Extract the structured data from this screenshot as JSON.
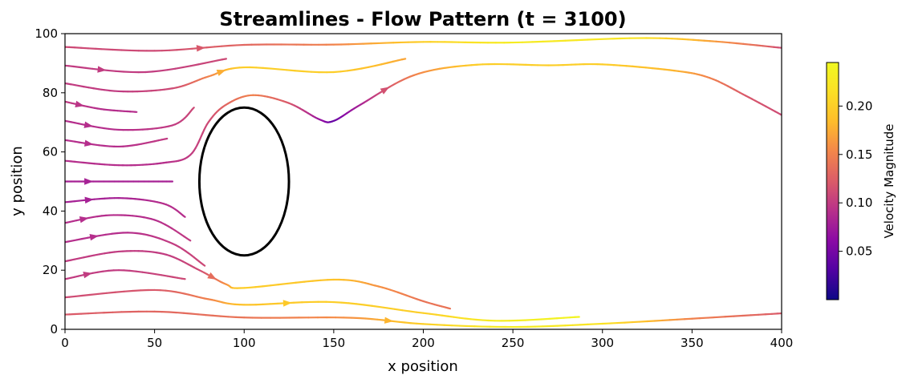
{
  "chart_data": {
    "type": "streamplot",
    "title": "Streamlines - Flow Pattern (t = 3100)",
    "xlabel": "x position",
    "ylabel": "y position",
    "xlim": [
      0,
      400
    ],
    "ylim": [
      0,
      100
    ],
    "xticks": [
      "0",
      "50",
      "100",
      "150",
      "200",
      "250",
      "300",
      "350",
      "400"
    ],
    "yticks": [
      "0",
      "20",
      "40",
      "60",
      "80",
      "100"
    ],
    "obstacle": {
      "shape": "ellipse",
      "cx": 100,
      "cy": 50,
      "rx": 25,
      "ry": 25,
      "color": "#000000"
    },
    "colorbar": {
      "label": "Velocity Magnitude",
      "colormap": "plasma",
      "range": [
        0.0,
        0.245
      ],
      "ticks": [
        "0.05",
        "0.10",
        "0.15",
        "0.20"
      ],
      "tick_values": [
        0.05,
        0.1,
        0.15,
        0.2
      ]
    },
    "streamlines": [
      {
        "points": [
          [
            0,
            95.5
          ],
          [
            50,
            94.2
          ],
          [
            100,
            96.2
          ],
          [
            150,
            96.3
          ],
          [
            200,
            97.2
          ],
          [
            250,
            97.0
          ],
          [
            320,
            98.5
          ],
          [
            360,
            97.5
          ],
          [
            400,
            95.2
          ]
        ],
        "speeds": [
          0.11,
          0.11,
          0.13,
          0.15,
          0.2,
          0.23,
          0.22,
          0.17,
          0.11
        ],
        "arrow_at": 1
      },
      {
        "points": [
          [
            0,
            89.2
          ],
          [
            45,
            87.0
          ],
          [
            90,
            91.5
          ]
        ],
        "speeds": [
          0.1,
          0.1,
          0.11
        ],
        "arrow_at": 0
      },
      {
        "points": [
          [
            0,
            83.2
          ],
          [
            30,
            80.5
          ],
          [
            60,
            81.5
          ],
          [
            80,
            85.5
          ],
          [
            100,
            88.6
          ],
          [
            150,
            87.0
          ],
          [
            190,
            91.5
          ]
        ],
        "speeds": [
          0.1,
          0.1,
          0.11,
          0.15,
          0.2,
          0.2,
          0.17
        ],
        "arrow_at": 3
      },
      {
        "points": [
          [
            0,
            77.0
          ],
          [
            20,
            74.5
          ],
          [
            40,
            73.5
          ]
        ],
        "speeds": [
          0.1,
          0.09,
          0.09
        ],
        "arrow_at": 0
      },
      {
        "points": [
          [
            0,
            70.5
          ],
          [
            30,
            67.5
          ],
          [
            60,
            69.0
          ],
          [
            72,
            75.0
          ]
        ],
        "speeds": [
          0.09,
          0.09,
          0.1,
          0.11
        ],
        "arrow_at": 0
      },
      {
        "points": [
          [
            0,
            64.0
          ],
          [
            30,
            61.8
          ],
          [
            57,
            64.5
          ]
        ],
        "speeds": [
          0.09,
          0.09,
          0.1
        ],
        "arrow_at": 0
      },
      {
        "points": [
          [
            0,
            57.0
          ],
          [
            30,
            55.5
          ],
          [
            55,
            56.3
          ],
          [
            70,
            59.0
          ],
          [
            80,
            70.0
          ],
          [
            90,
            76.0
          ],
          [
            105,
            79.2
          ],
          [
            125,
            76.5
          ],
          [
            142,
            71.0
          ],
          [
            150,
            70.5
          ],
          [
            165,
            76.0
          ],
          [
            195,
            86.0
          ],
          [
            230,
            89.5
          ],
          [
            270,
            89.3
          ],
          [
            300,
            89.6
          ],
          [
            340,
            87.5
          ],
          [
            360,
            85.0
          ],
          [
            380,
            79.0
          ],
          [
            400,
            72.5
          ]
        ],
        "speeds": [
          0.09,
          0.09,
          0.09,
          0.1,
          0.11,
          0.13,
          0.15,
          0.12,
          0.07,
          0.04,
          0.08,
          0.15,
          0.2,
          0.2,
          0.2,
          0.18,
          0.15,
          0.12,
          0.11
        ],
        "arrow_at": 10
      },
      {
        "points": [
          [
            0,
            50.0
          ],
          [
            30,
            50.0
          ],
          [
            60,
            50.0
          ]
        ],
        "speeds": [
          0.08,
          0.08,
          0.08
        ],
        "arrow_at": 0
      },
      {
        "points": [
          [
            0,
            43.0
          ],
          [
            30,
            44.4
          ],
          [
            55,
            42.5
          ],
          [
            67,
            38.0
          ]
        ],
        "speeds": [
          0.08,
          0.08,
          0.09,
          0.09
        ],
        "arrow_at": 0
      },
      {
        "points": [
          [
            0,
            36.0
          ],
          [
            25,
            38.6
          ],
          [
            50,
            37.0
          ],
          [
            70,
            30.0
          ]
        ],
        "speeds": [
          0.09,
          0.09,
          0.09,
          0.1
        ],
        "arrow_at": 0
      },
      {
        "points": [
          [
            0,
            29.5
          ],
          [
            35,
            32.7
          ],
          [
            60,
            29.0
          ],
          [
            78,
            21.5
          ]
        ],
        "speeds": [
          0.09,
          0.09,
          0.1,
          0.11
        ],
        "arrow_at": 0
      },
      {
        "points": [
          [
            0,
            23.0
          ],
          [
            30,
            26.3
          ],
          [
            55,
            25.5
          ],
          [
            75,
            20.0
          ],
          [
            90,
            15.2
          ],
          [
            100,
            14.0
          ],
          [
            150,
            16.8
          ],
          [
            175,
            14.5
          ],
          [
            200,
            9.5
          ],
          [
            215,
            7.0
          ]
        ],
        "speeds": [
          0.1,
          0.1,
          0.1,
          0.11,
          0.16,
          0.2,
          0.19,
          0.16,
          0.14,
          0.14
        ],
        "arrow_at": 3
      },
      {
        "points": [
          [
            0,
            17.0
          ],
          [
            30,
            20.0
          ],
          [
            67,
            17.0
          ]
        ],
        "speeds": [
          0.1,
          0.1,
          0.11
        ],
        "arrow_at": 0
      },
      {
        "points": [
          [
            0,
            10.8
          ],
          [
            50,
            13.3
          ],
          [
            80,
            10.2
          ],
          [
            100,
            8.3
          ],
          [
            150,
            9.2
          ],
          [
            200,
            5.5
          ],
          [
            240,
            2.9
          ],
          [
            287,
            4.2
          ]
        ],
        "speeds": [
          0.11,
          0.12,
          0.15,
          0.19,
          0.2,
          0.2,
          0.23,
          0.24
        ],
        "arrow_at": 3
      },
      {
        "points": [
          [
            0,
            5.0
          ],
          [
            50,
            6.0
          ],
          [
            100,
            4.0
          ],
          [
            160,
            3.9
          ],
          [
            200,
            1.8
          ],
          [
            250,
            0.8
          ],
          [
            300,
            1.9
          ],
          [
            350,
            3.6
          ],
          [
            400,
            5.4
          ]
        ],
        "speeds": [
          0.12,
          0.13,
          0.14,
          0.16,
          0.2,
          0.23,
          0.22,
          0.15,
          0.12
        ],
        "arrow_at": 3
      }
    ]
  }
}
